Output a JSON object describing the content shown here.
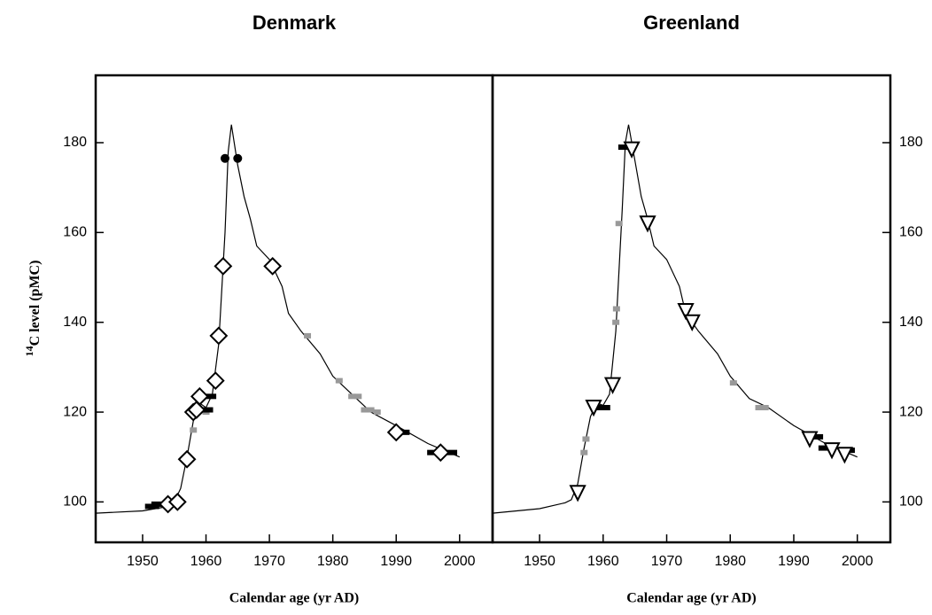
{
  "chart_data": [
    {
      "type": "scatter",
      "title": "Denmark",
      "x_label": "Calendar age (yr AD)",
      "y_label_superscript": "14",
      "y_label": "C level (pMC)",
      "y_axis_side": "left",
      "xlim": [
        1942.6,
        2005.2
      ],
      "ylim": [
        91,
        195
      ],
      "xticks": [
        1950,
        1960,
        1970,
        1980,
        1990,
        2000
      ],
      "yticks": [
        100,
        120,
        140,
        160,
        180
      ],
      "series": [
        {
          "marker": "line",
          "color": "#000000",
          "x": [
            1942.6,
            1950,
            1954,
            1955,
            1956,
            1957,
            1958,
            1959,
            1960,
            1961,
            1962,
            1963,
            1963.5,
            1964,
            1965,
            1966,
            1967,
            1968,
            1970,
            1972,
            1973,
            1975,
            1978,
            1980,
            1983,
            1986,
            1990,
            1995,
            2000
          ],
          "values": [
            97.5,
            98,
            99,
            100,
            103,
            110,
            118,
            122,
            121,
            124,
            135,
            160,
            178,
            184,
            175,
            168,
            163,
            157,
            154,
            148,
            142,
            138,
            133,
            128,
            124,
            120,
            117,
            113,
            110
          ]
        },
        {
          "marker": "square",
          "color": "#999999",
          "x": [
            1958,
            1960,
            1976,
            1981,
            1983,
            1984,
            1985,
            1986,
            1987
          ],
          "values": [
            116,
            120,
            137,
            127,
            123.5,
            123.5,
            120.5,
            120.5,
            120
          ]
        },
        {
          "marker": "dash",
          "color": "#000000",
          "x": [
            1951.5,
            1952.5,
            1960,
            1960.5,
            1991,
            1996,
            1998.5
          ],
          "values": [
            99,
            99.5,
            120.5,
            123.5,
            115.5,
            111,
            111
          ]
        },
        {
          "marker": "diamond",
          "color": "#000000",
          "x": [
            1954,
            1955.5,
            1957,
            1958,
            1958.5,
            1959,
            1961.5,
            1962,
            1962.7,
            1970.5,
            1990,
            1997
          ],
          "values": [
            99.5,
            100,
            109.5,
            120,
            120.5,
            123.5,
            127,
            137,
            152.5,
            152.5,
            115.5,
            111
          ]
        },
        {
          "marker": "circle",
          "color": "#000000",
          "x": [
            1963,
            1965
          ],
          "values": [
            176.5,
            176.5
          ]
        }
      ]
    },
    {
      "type": "scatter",
      "title": "Greenland",
      "x_label": "Calendar age (yr AD)",
      "y_axis_side": "right",
      "xlim": [
        1942.6,
        2005.2
      ],
      "ylim": [
        91,
        195
      ],
      "xticks": [
        1950,
        1960,
        1970,
        1980,
        1990,
        2000
      ],
      "yticks": [
        100,
        120,
        140,
        160,
        180
      ],
      "series": [
        {
          "marker": "line",
          "color": "#000000",
          "x": [
            1942.6,
            1950,
            1954,
            1955,
            1956,
            1957,
            1958,
            1959,
            1960,
            1961,
            1962,
            1963,
            1963.5,
            1964,
            1965,
            1966,
            1967,
            1968,
            1970,
            1972,
            1973,
            1975,
            1978,
            1980,
            1983,
            1986,
            1990,
            1995,
            2000
          ],
          "values": [
            97.5,
            98.5,
            99.8,
            100.5,
            104,
            112,
            119,
            122,
            121.5,
            124,
            138,
            165,
            180,
            184,
            176,
            168,
            163,
            157,
            154,
            148,
            142,
            138,
            133,
            128,
            123,
            121,
            117,
            113,
            110
          ]
        },
        {
          "marker": "square",
          "color": "#999999",
          "x": [
            1957,
            1957.3,
            1962,
            1962.1,
            1962.5,
            1980.5,
            1984.5,
            1985.5
          ],
          "values": [
            111,
            114,
            140,
            143,
            162,
            126.5,
            121,
            121
          ]
        },
        {
          "marker": "dash",
          "color": "#000000",
          "x": [
            1960,
            1963.5,
            1993.5,
            1995,
            1998.5
          ],
          "values": [
            121,
            179,
            114.5,
            112,
            111.5
          ]
        },
        {
          "marker": "triangle",
          "color": "#000000",
          "x": [
            1956,
            1958.5,
            1961.5,
            1964.5,
            1967,
            1973,
            1974,
            1992.5,
            1996,
            1998
          ],
          "values": [
            102,
            121,
            126,
            178.5,
            162,
            142.5,
            140,
            114,
            111.5,
            110.5
          ]
        }
      ]
    }
  ]
}
